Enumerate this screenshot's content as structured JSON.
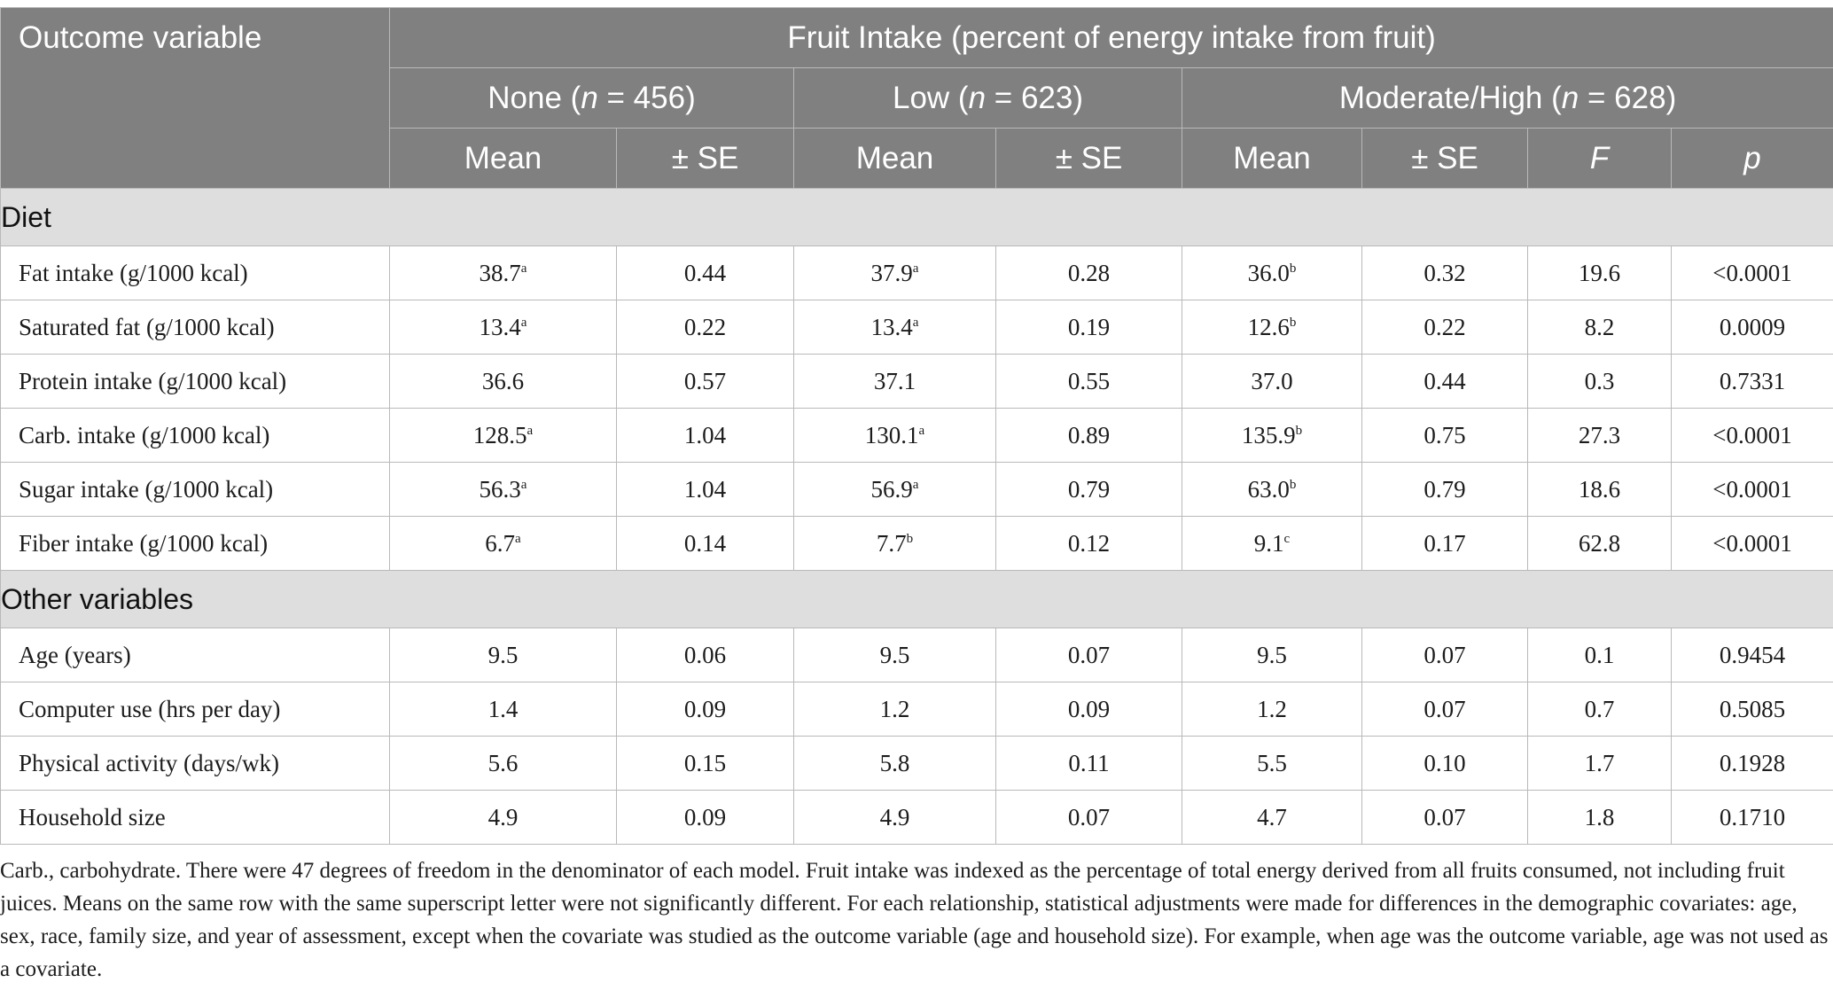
{
  "header": {
    "outcome_label": "Outcome variable",
    "group_title": "Fruit Intake (percent of energy intake from fruit)",
    "groups": [
      {
        "name": "None",
        "n_label": "n",
        "n_value": "= 456"
      },
      {
        "name": "Low",
        "n_label": "n",
        "n_value": "= 623"
      },
      {
        "name": "Moderate/High",
        "n_label": "n",
        "n_value": "= 628"
      }
    ],
    "col_mean": "Mean",
    "col_se": "± SE",
    "col_f": "F",
    "col_p": "p"
  },
  "sections": [
    {
      "title": "Diet",
      "rows": [
        {
          "label": "Fat intake (g/1000 kcal)",
          "none_mean": "38.7",
          "none_sup": "a",
          "none_se": "0.44",
          "low_mean": "37.9",
          "low_sup": "a",
          "low_se": "0.28",
          "mod_mean": "36.0",
          "mod_sup": "b",
          "mod_se": "0.32",
          "f": "19.6",
          "p": "<0.0001"
        },
        {
          "label": "Saturated fat (g/1000 kcal)",
          "none_mean": "13.4",
          "none_sup": "a",
          "none_se": "0.22",
          "low_mean": "13.4",
          "low_sup": "a",
          "low_se": "0.19",
          "mod_mean": "12.6",
          "mod_sup": "b",
          "mod_se": "0.22",
          "f": "8.2",
          "p": "0.0009"
        },
        {
          "label": "Protein intake (g/1000 kcal)",
          "none_mean": "36.6",
          "none_sup": "",
          "none_se": "0.57",
          "low_mean": "37.1",
          "low_sup": "",
          "low_se": "0.55",
          "mod_mean": "37.0",
          "mod_sup": "",
          "mod_se": "0.44",
          "f": "0.3",
          "p": "0.7331"
        },
        {
          "label": "Carb. intake (g/1000 kcal)",
          "none_mean": "128.5",
          "none_sup": "a",
          "none_se": "1.04",
          "low_mean": "130.1",
          "low_sup": "a",
          "low_se": "0.89",
          "mod_mean": "135.9",
          "mod_sup": "b",
          "mod_se": "0.75",
          "f": "27.3",
          "p": "<0.0001"
        },
        {
          "label": "Sugar intake (g/1000 kcal)",
          "none_mean": "56.3",
          "none_sup": "a",
          "none_se": "1.04",
          "low_mean": "56.9",
          "low_sup": "a",
          "low_se": "0.79",
          "mod_mean": "63.0",
          "mod_sup": "b",
          "mod_se": "0.79",
          "f": "18.6",
          "p": "<0.0001"
        },
        {
          "label": "Fiber intake (g/1000 kcal)",
          "none_mean": "6.7",
          "none_sup": "a",
          "none_se": "0.14",
          "low_mean": "7.7",
          "low_sup": "b",
          "low_se": "0.12",
          "mod_mean": "9.1",
          "mod_sup": "c",
          "mod_se": "0.17",
          "f": "62.8",
          "p": "<0.0001"
        }
      ]
    },
    {
      "title": "Other variables",
      "rows": [
        {
          "label": "Age (years)",
          "none_mean": "9.5",
          "none_sup": "",
          "none_se": "0.06",
          "low_mean": "9.5",
          "low_sup": "",
          "low_se": "0.07",
          "mod_mean": "9.5",
          "mod_sup": "",
          "mod_se": "0.07",
          "f": "0.1",
          "p": "0.9454"
        },
        {
          "label": "Computer use (hrs per day)",
          "none_mean": "1.4",
          "none_sup": "",
          "none_se": "0.09",
          "low_mean": "1.2",
          "low_sup": "",
          "low_se": "0.09",
          "mod_mean": "1.2",
          "mod_sup": "",
          "mod_se": "0.07",
          "f": "0.7",
          "p": "0.5085"
        },
        {
          "label": "Physical activity (days/wk)",
          "none_mean": "5.6",
          "none_sup": "",
          "none_se": "0.15",
          "low_mean": "5.8",
          "low_sup": "",
          "low_se": "0.11",
          "mod_mean": "5.5",
          "mod_sup": "",
          "mod_se": "0.10",
          "f": "1.7",
          "p": "0.1928"
        },
        {
          "label": "Household size",
          "none_mean": "4.9",
          "none_sup": "",
          "none_se": "0.09",
          "low_mean": "4.9",
          "low_sup": "",
          "low_se": "0.07",
          "mod_mean": "4.7",
          "mod_sup": "",
          "mod_se": "0.07",
          "f": "1.8",
          "p": "0.1710"
        }
      ]
    }
  ],
  "footnote": "Carb., carbohydrate. There were 47 degrees of freedom in the denominator of each model. Fruit intake was indexed as the percentage of total energy derived from all fruits consumed, not including fruit juices. Means on the same row with the same superscript letter were not significantly different. For each relationship, statistical adjustments were made for differences in the demographic covariates: age, sex, race, family size, and year of assessment, except when the covariate was studied as the outcome variable (age and household size). For example, when age was the outcome variable, age was not used as a covariate."
}
